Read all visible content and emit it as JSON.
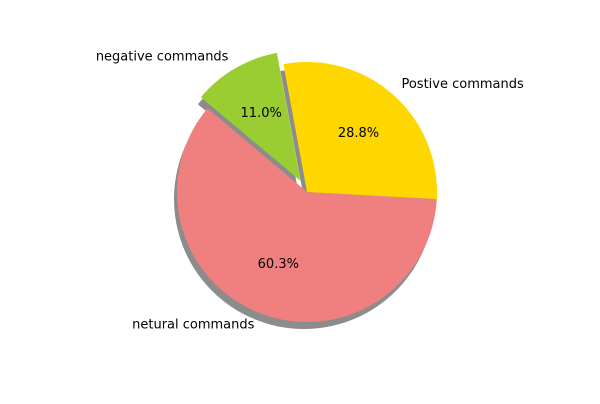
{
  "chart_data": {
    "type": "pie",
    "title": "",
    "slices": [
      {
        "label": "netural commands",
        "value": 60.3,
        "pct_label": "60.3%",
        "color": "#f08080",
        "explode": false
      },
      {
        "label": "Postive commands",
        "value": 28.8,
        "pct_label": "28.8%",
        "color": "#ffd700",
        "explode": false
      },
      {
        "label": "negative commands",
        "value": 11.0,
        "pct_label": "11.0%",
        "color": "#9acd32",
        "explode": true
      }
    ],
    "start_angle_deg": 140,
    "direction": "counterclockwise",
    "shadow": true,
    "legend": "none"
  }
}
